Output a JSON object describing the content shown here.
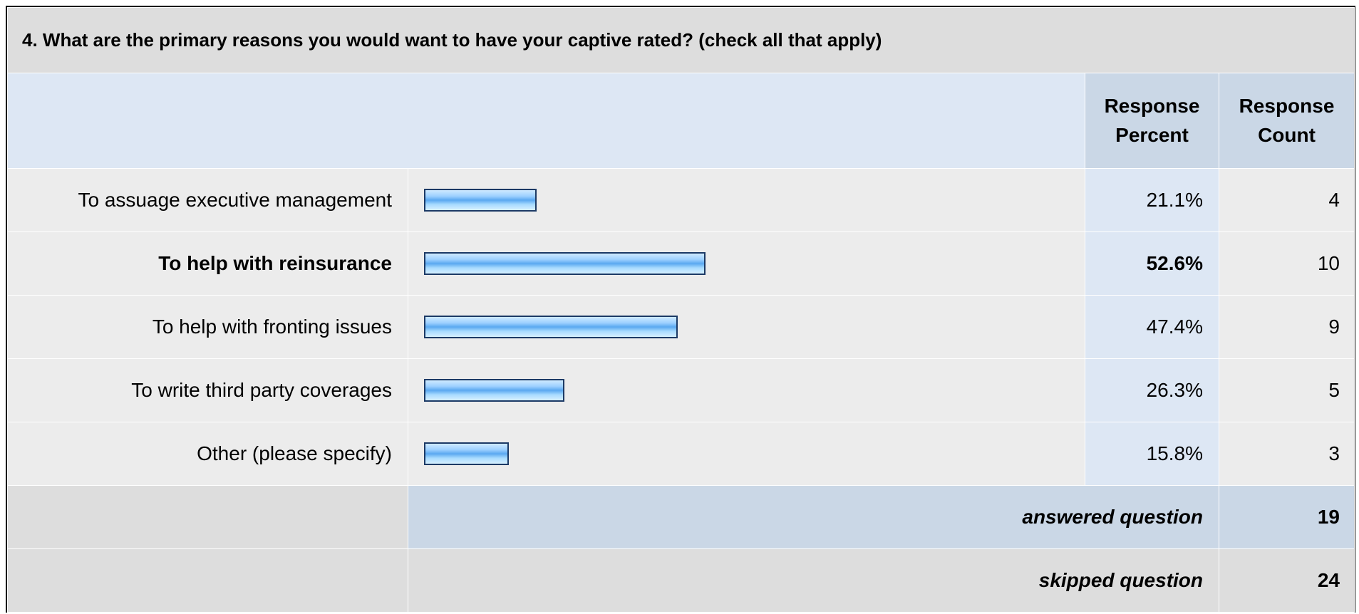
{
  "question": {
    "title": "4. What are the primary reasons you would want to have your captive rated? (check all that apply)"
  },
  "header": {
    "percent_line1": "Response",
    "percent_line2": "Percent",
    "count_line1": "Response",
    "count_line2": "Count"
  },
  "colors": {
    "bar_border": "#1c3a66",
    "bar_fill": "#5aa8f0",
    "header_bg": "#cad7e6",
    "cell_bg": "#ececec"
  },
  "rows": [
    {
      "label": "To assuage executive management",
      "percent": "21.1%",
      "count": "4",
      "bold": false
    },
    {
      "label": "To help with reinsurance",
      "percent": "52.6%",
      "count": "10",
      "bold": true
    },
    {
      "label": "To help with fronting issues",
      "percent": "47.4%",
      "count": "9",
      "bold": false
    },
    {
      "label": "To write third party coverages",
      "percent": "26.3%",
      "count": "5",
      "bold": false
    },
    {
      "label": "Other (please specify)",
      "percent": "15.8%",
      "count": "3",
      "bold": false
    }
  ],
  "summary": {
    "answered_label": "answered question",
    "answered_value": "19",
    "skipped_label": "skipped question",
    "skipped_value": "24"
  },
  "chart_data": {
    "type": "bar",
    "title": "4. What are the primary reasons you would want to have your captive rated? (check all that apply)",
    "categories": [
      "To assuage executive management",
      "To help with reinsurance",
      "To help with fronting issues",
      "To write third party coverages",
      "Other (please specify)"
    ],
    "values": [
      21.1,
      52.6,
      47.4,
      26.3,
      15.8
    ],
    "counts": [
      4,
      10,
      9,
      5,
      3
    ],
    "ylim": [
      0,
      100
    ]
  }
}
